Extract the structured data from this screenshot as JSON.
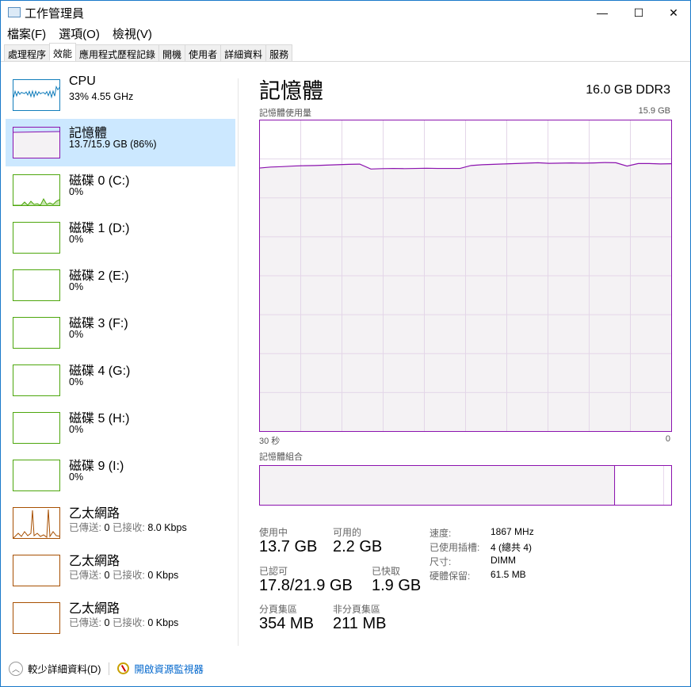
{
  "window": {
    "title": "工作管理員",
    "minimize": "—",
    "maximize": "☐",
    "close": "✕"
  },
  "menu": [
    "檔案(F)",
    "選項(O)",
    "檢視(V)"
  ],
  "tabs": [
    "處理程序",
    "效能",
    "應用程式歷程記錄",
    "開機",
    "使用者",
    "詳細資料",
    "服務"
  ],
  "active_tab": 1,
  "sidebar": [
    {
      "name": "CPU",
      "sub": "33%  4.55 GHz",
      "kind": "cpu"
    },
    {
      "name": "記憶體",
      "sub": "13.7/15.9 GB (86%)",
      "kind": "mem",
      "selected": true
    },
    {
      "name": "磁碟 0 (C:)",
      "sub": "0%",
      "kind": "disk"
    },
    {
      "name": "磁碟 1 (D:)",
      "sub": "0%",
      "kind": "disk"
    },
    {
      "name": "磁碟 2 (E:)",
      "sub": "0%",
      "kind": "disk"
    },
    {
      "name": "磁碟 3 (F:)",
      "sub": "0%",
      "kind": "disk"
    },
    {
      "name": "磁碟 4 (G:)",
      "sub": "0%",
      "kind": "disk"
    },
    {
      "name": "磁碟 5 (H:)",
      "sub": "0%",
      "kind": "disk"
    },
    {
      "name": "磁碟 9 (I:)",
      "sub": "0%",
      "kind": "disk"
    },
    {
      "name": "乙太網路",
      "sent_label": "已傳送:",
      "sent": "0",
      "recv_label": "已接收:",
      "recv": "8.0 Kbps",
      "kind": "net"
    },
    {
      "name": "乙太網路",
      "sent_label": "已傳送:",
      "sent": "0",
      "recv_label": "已接收:",
      "recv": "0 Kbps",
      "kind": "net"
    },
    {
      "name": "乙太網路",
      "sent_label": "已傳送:",
      "sent": "0",
      "recv_label": "已接收:",
      "recv": "0 Kbps",
      "kind": "net"
    }
  ],
  "colors": {
    "cpu": "#117dbb",
    "mem": "#8b12ae",
    "disk": "#4da60c",
    "net": "#a74f01",
    "selected": "#cce8ff",
    "link": "#0066cc"
  },
  "main": {
    "title": "記憶體",
    "spec": "16.0 GB DDR3",
    "usage_label": "記憶體使用量",
    "usage_max": "15.9 GB",
    "time_left": "30 秒",
    "time_right": "0",
    "composition_label": "記憶體組合",
    "usage_series_gb": [
      13.45,
      13.5,
      13.52,
      13.55,
      13.57,
      13.58,
      13.6,
      13.62,
      13.64,
      13.65,
      13.4,
      13.42,
      13.43,
      13.42,
      13.43,
      13.44,
      13.43,
      13.43,
      13.43,
      13.58,
      13.62,
      13.64,
      13.66,
      13.68,
      13.7,
      13.72,
      13.69,
      13.7,
      13.71,
      13.7,
      13.71,
      13.73,
      13.72,
      13.55,
      13.68,
      13.68,
      13.66,
      13.67
    ],
    "composition": {
      "in_use_gb": 13.7,
      "cached_gb": 1.9,
      "total_gb": 15.9
    },
    "stats": {
      "in_use": {
        "label": "使用中",
        "value": "13.7 GB"
      },
      "available": {
        "label": "可用的",
        "value": "2.2 GB"
      },
      "committed": {
        "label": "已認可",
        "value": "17.8/21.9 GB"
      },
      "cached": {
        "label": "已快取",
        "value": "1.9 GB"
      },
      "paged": {
        "label": "分頁集區",
        "value": "354 MB"
      },
      "nonpaged": {
        "label": "非分頁集區",
        "value": "211 MB"
      }
    },
    "right": [
      {
        "label": "速度:",
        "value": "1867 MHz"
      },
      {
        "label": "已使用插槽:",
        "value": "4 (總共 4)"
      },
      {
        "label": "尺寸:",
        "value": "DIMM"
      },
      {
        "label": "硬體保留:",
        "value": "61.5 MB"
      }
    ]
  },
  "footer": {
    "fewer": "較少詳細資料(D)",
    "monitor": "開啟資源監視器"
  }
}
